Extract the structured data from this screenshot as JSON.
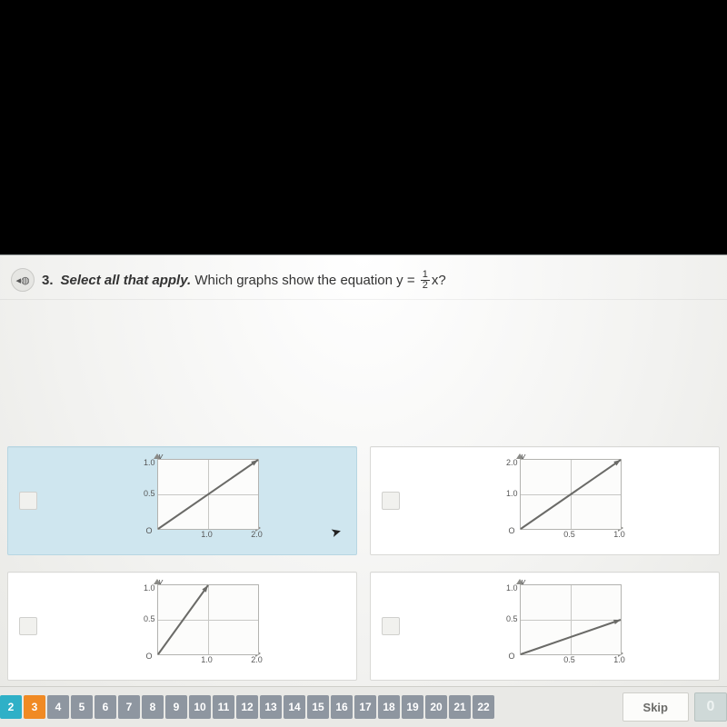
{
  "question": {
    "number": "3.",
    "instruction_italic": "Select all that apply.",
    "text_before_eq": "Which graphs show the equation ",
    "eq_lhs": "y = ",
    "eq_frac_num": "1",
    "eq_frac_den": "2",
    "eq_rhs": "x?",
    "audio_icon": "◂◍"
  },
  "graph_common": {
    "background_color": "#fcfcfb",
    "grid_color": "#c8c8c5",
    "axis_color": "#b3b3b0",
    "line_color": "#6a6a67",
    "font_size_ticks": 9,
    "xlabel": "x",
    "ylabel": "y",
    "origin_label": "O"
  },
  "choices": [
    {
      "selected": true,
      "xlim": [
        0,
        2.0
      ],
      "ylim": [
        0,
        1.0
      ],
      "xticks": [
        "1.0",
        "2.0"
      ],
      "yticks": [
        "0.5",
        "1.0"
      ],
      "line_from": [
        0,
        0
      ],
      "line_to": [
        2.0,
        1.0
      ]
    },
    {
      "selected": false,
      "xlim": [
        0,
        1.0
      ],
      "ylim": [
        0,
        2.0
      ],
      "xticks": [
        "0.5",
        "1.0"
      ],
      "yticks": [
        "1.0",
        "2.0"
      ],
      "line_from": [
        0,
        0
      ],
      "line_to": [
        1.0,
        2.0
      ]
    },
    {
      "selected": false,
      "xlim": [
        0,
        2.0
      ],
      "ylim": [
        0,
        1.0
      ],
      "xticks": [
        "1.0",
        "2.0"
      ],
      "yticks": [
        "0.5",
        "1.0"
      ],
      "line_from": [
        0,
        0
      ],
      "line_to": [
        1.0,
        1.0
      ]
    },
    {
      "selected": false,
      "xlim": [
        0,
        1.0
      ],
      "ylim": [
        0,
        1.0
      ],
      "xticks": [
        "0.5",
        "1.0"
      ],
      "yticks": [
        "0.5",
        "1.0"
      ],
      "line_from": [
        0,
        0
      ],
      "line_to": [
        1.0,
        0.5
      ]
    }
  ],
  "pager": {
    "pages": [
      "2",
      "3",
      "4",
      "5",
      "6",
      "7",
      "8",
      "9",
      "10",
      "11",
      "12",
      "13",
      "14",
      "15",
      "16",
      "17",
      "18",
      "19",
      "20",
      "21",
      "22"
    ],
    "done_until_index": 1,
    "current_index": 1
  },
  "buttons": {
    "skip": "Skip"
  },
  "colors": {
    "selected_bg": "#cfe6ef",
    "card_bg": "#ffffff",
    "pager_default": "#8e96a0",
    "pager_done": "#2fb0c7",
    "pager_current": "#f08a24"
  }
}
